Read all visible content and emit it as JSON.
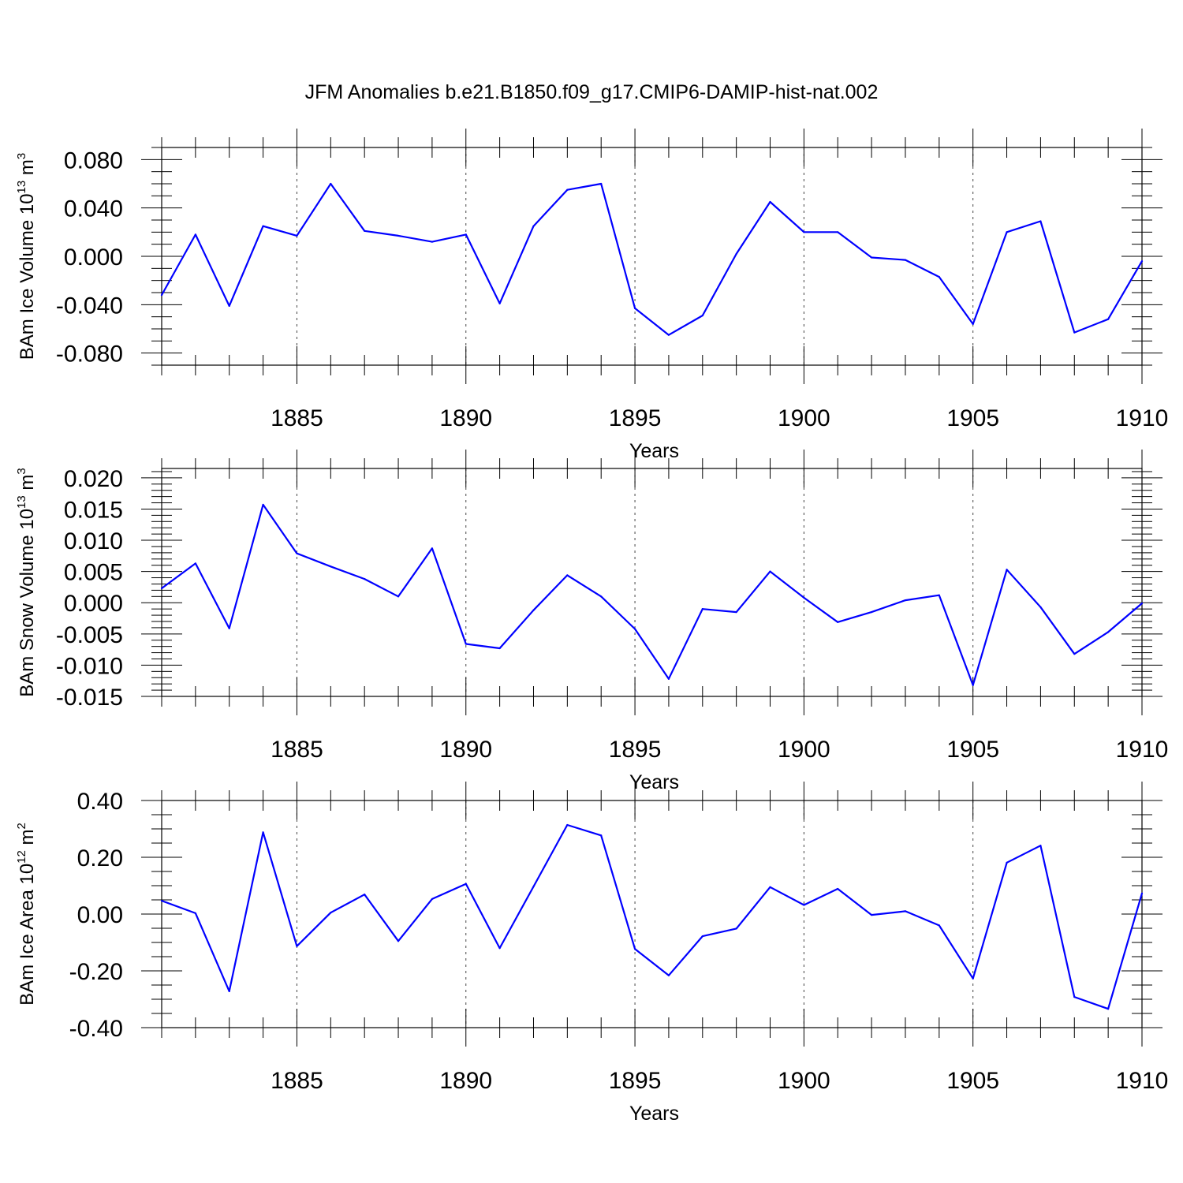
{
  "title": "JFM Anomalies b.e21.B1850.f09_g17.CMIP6-DAMIP-hist-nat.002",
  "line_color": "#0000ff",
  "chart_data": [
    {
      "type": "line",
      "ylabel": "BAm Ice Volume 10",
      "ylabel_exp": "13",
      "ylabel_unit": " m",
      "ylabel_unit_exp": "3",
      "xlabel": "Years",
      "xlim": [
        1881,
        1910
      ],
      "ylim": [
        -0.09,
        0.09
      ],
      "yticks": [
        -0.08,
        -0.04,
        0.0,
        0.04,
        0.08
      ],
      "ytick_labels": [
        "-0.080",
        "-0.040",
        "0.000",
        "0.040",
        "0.080"
      ],
      "yminor_step": 0.01,
      "xticks": [
        1885,
        1890,
        1895,
        1900,
        1905,
        1910
      ],
      "xtick_labels": [
        "1885",
        "1890",
        "1895",
        "1900",
        "1905",
        "1910"
      ],
      "x": [
        1881,
        1882,
        1883,
        1884,
        1885,
        1886,
        1887,
        1888,
        1889,
        1890,
        1891,
        1892,
        1893,
        1894,
        1895,
        1896,
        1897,
        1898,
        1899,
        1900,
        1901,
        1902,
        1903,
        1904,
        1905,
        1906,
        1907,
        1908,
        1909,
        1910
      ],
      "y": [
        -0.032,
        0.018,
        -0.041,
        0.025,
        0.017,
        0.06,
        0.021,
        0.017,
        0.012,
        0.018,
        -0.039,
        0.025,
        0.055,
        0.06,
        -0.043,
        -0.065,
        -0.049,
        0.002,
        0.045,
        0.02,
        0.02,
        -0.001,
        -0.003,
        -0.017,
        -0.056,
        0.02,
        0.029,
        -0.063,
        -0.052,
        -0.004
      ]
    },
    {
      "type": "line",
      "ylabel": "BAm Snow Volume 10",
      "ylabel_exp": "13",
      "ylabel_unit": " m",
      "ylabel_unit_exp": "3",
      "xlabel": "Years",
      "xlim": [
        1881,
        1910
      ],
      "ylim": [
        -0.015,
        0.0215
      ],
      "yticks": [
        -0.015,
        -0.01,
        -0.005,
        0.0,
        0.005,
        0.01,
        0.015,
        0.02
      ],
      "ytick_labels": [
        "-0.015",
        "-0.010",
        "-0.005",
        "0.000",
        "0.005",
        "0.010",
        "0.015",
        "0.020"
      ],
      "yminor_step": 0.001,
      "xticks": [
        1885,
        1890,
        1895,
        1900,
        1905,
        1910
      ],
      "xtick_labels": [
        "1885",
        "1890",
        "1895",
        "1900",
        "1905",
        "1910"
      ],
      "x": [
        1881,
        1882,
        1883,
        1884,
        1885,
        1886,
        1887,
        1888,
        1889,
        1890,
        1891,
        1892,
        1893,
        1894,
        1895,
        1896,
        1897,
        1898,
        1899,
        1900,
        1901,
        1902,
        1903,
        1904,
        1905,
        1906,
        1907,
        1908,
        1909,
        1910
      ],
      "y": [
        0.0023,
        0.0063,
        -0.0041,
        0.0157,
        0.0079,
        0.0058,
        0.0038,
        0.001,
        0.0087,
        -0.0066,
        -0.0073,
        -0.0012,
        0.0044,
        0.001,
        -0.0042,
        -0.0122,
        -0.001,
        -0.0015,
        0.005,
        0.0008,
        -0.0031,
        -0.0015,
        0.0004,
        0.0012,
        -0.0132,
        0.0053,
        -0.0007,
        -0.0082,
        -0.0047,
        -0.0001
      ]
    },
    {
      "type": "line",
      "ylabel": "BAm Ice Area 10",
      "ylabel_exp": "12",
      "ylabel_unit": " m",
      "ylabel_unit_exp": "2",
      "xlabel": "Years",
      "xlim": [
        1881,
        1910
      ],
      "ylim": [
        -0.4,
        0.4
      ],
      "yticks": [
        -0.4,
        -0.2,
        0.0,
        0.2,
        0.4
      ],
      "ytick_labels": [
        "-0.40",
        "-0.20",
        "0.00",
        "0.20",
        "0.40"
      ],
      "yminor_step": 0.05,
      "xticks": [
        1885,
        1890,
        1895,
        1900,
        1905,
        1910
      ],
      "xtick_labels": [
        "1885",
        "1890",
        "1895",
        "1900",
        "1905",
        "1910"
      ],
      "x": [
        1881,
        1882,
        1883,
        1884,
        1885,
        1886,
        1887,
        1888,
        1889,
        1890,
        1891,
        1892,
        1893,
        1894,
        1895,
        1896,
        1897,
        1898,
        1899,
        1900,
        1901,
        1902,
        1903,
        1904,
        1905,
        1906,
        1907,
        1908,
        1909,
        1910
      ],
      "y": [
        0.047,
        0.003,
        -0.272,
        0.288,
        -0.113,
        0.005,
        0.069,
        -0.095,
        0.053,
        0.106,
        -0.12,
        0.097,
        0.314,
        0.277,
        -0.123,
        -0.216,
        -0.078,
        -0.051,
        0.095,
        0.032,
        0.089,
        -0.003,
        0.01,
        -0.04,
        -0.227,
        0.181,
        0.241,
        -0.292,
        -0.334,
        0.073
      ]
    }
  ]
}
